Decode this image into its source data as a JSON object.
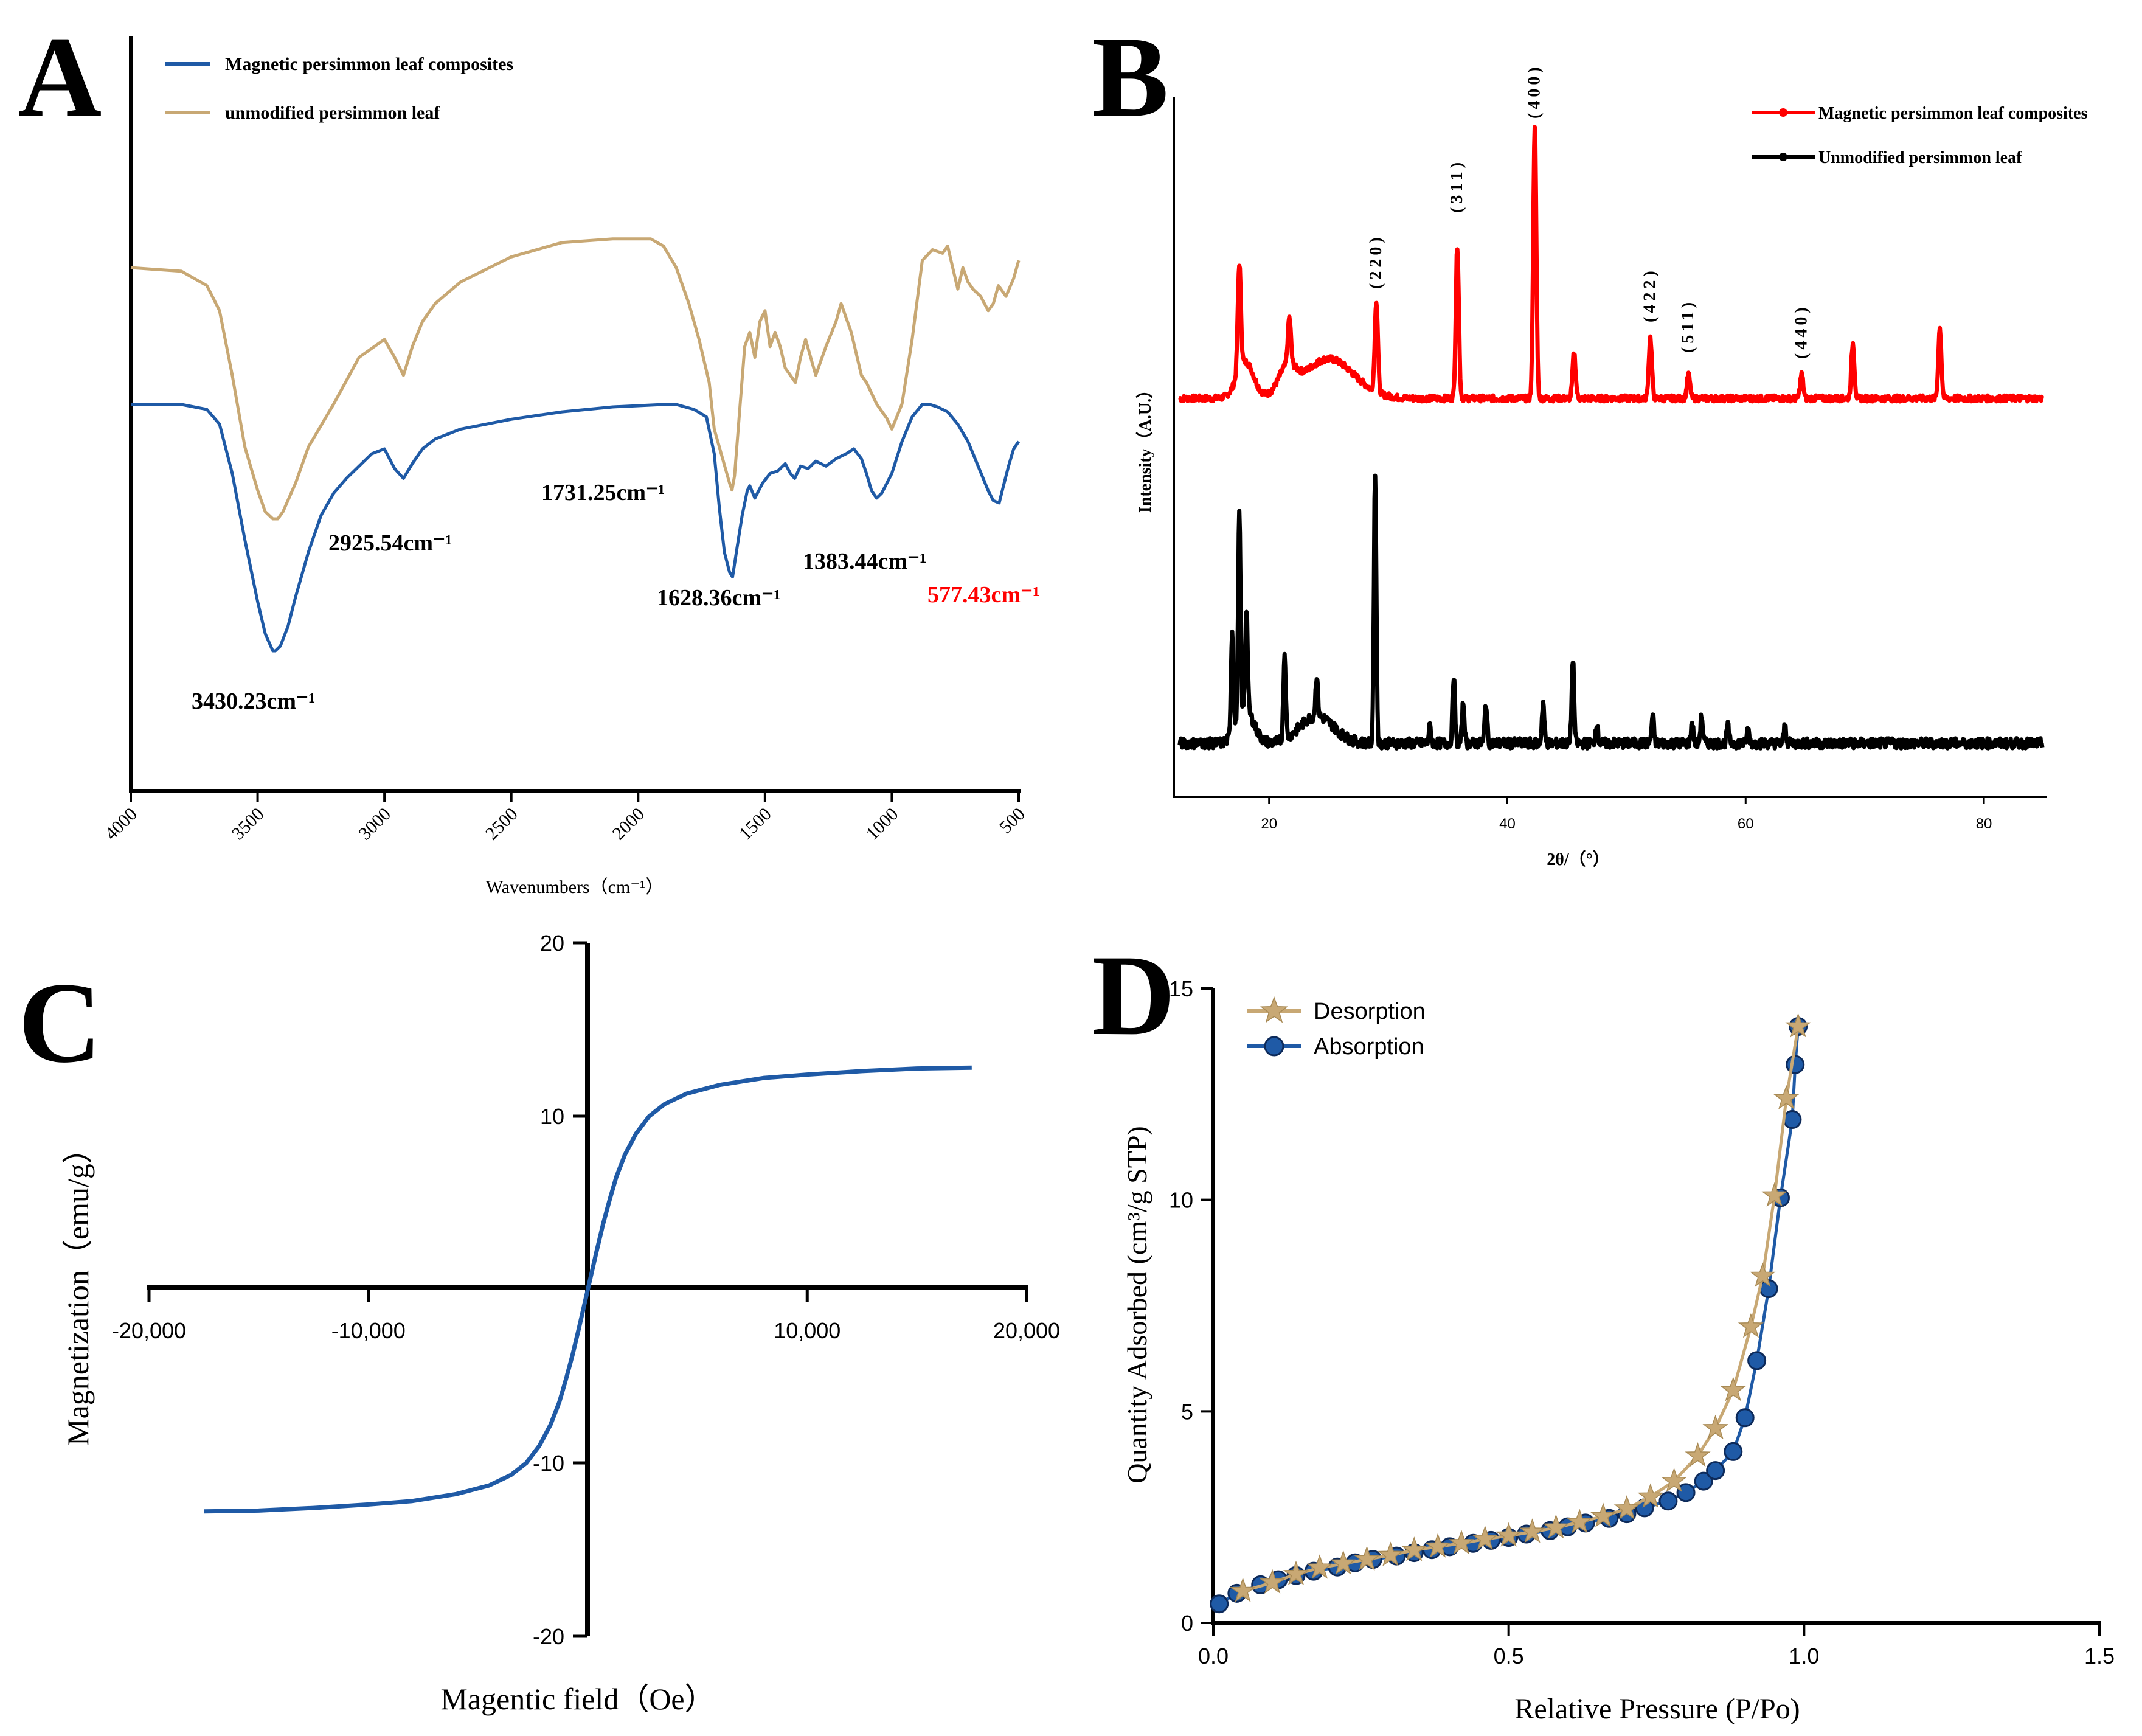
{
  "colors": {
    "blue": "#1f5aa6",
    "tan": "#c8a874",
    "red": "#ff0000",
    "black": "#000000",
    "navy_marker": "#1d3f7a"
  },
  "chart_data": [
    {
      "id": "A",
      "panel_label": "A",
      "type": "line",
      "title": "",
      "xlabel": "Wavenumbers（cm⁻¹）",
      "ylabel": "",
      "xlim": [
        4000,
        500
      ],
      "x_ticks": [
        "4000",
        "3500",
        "3000",
        "2500",
        "2000",
        "1500",
        "1000",
        "500"
      ],
      "legend": [
        {
          "name": "Magnetic persimmon leaf composites",
          "color": "#1f5aa6"
        },
        {
          "name": "unmodified persimmon leaf",
          "color": "#c8a874"
        }
      ],
      "series": [
        {
          "name": "Magnetic persimmon leaf composites",
          "color": "#1f5aa6",
          "x": [
            4000,
            3800,
            3700,
            3650,
            3600,
            3550,
            3500,
            3470,
            3440,
            3430,
            3410,
            3380,
            3350,
            3300,
            3250,
            3200,
            3150,
            3100,
            3050,
            3000,
            2960,
            2925,
            2890,
            2850,
            2800,
            2700,
            2500,
            2300,
            2100,
            1900,
            1850,
            1780,
            1731,
            1700,
            1680,
            1660,
            1640,
            1628,
            1610,
            1590,
            1570,
            1560,
            1540,
            1510,
            1480,
            1450,
            1420,
            1400,
            1383,
            1360,
            1330,
            1300,
            1260,
            1220,
            1180,
            1150,
            1120,
            1100,
            1080,
            1060,
            1040,
            1020,
            1000,
            960,
            920,
            880,
            850,
            820,
            780,
            740,
            700,
            660,
            620,
            600,
            577,
            560,
            540,
            520,
            500
          ],
          "y": [
            0.0,
            0.0,
            -0.02,
            -0.08,
            -0.28,
            -0.55,
            -0.8,
            -0.93,
            -1.0,
            -1.0,
            -0.98,
            -0.9,
            -0.78,
            -0.6,
            -0.45,
            -0.36,
            -0.3,
            -0.25,
            -0.2,
            -0.18,
            -0.26,
            -0.3,
            -0.24,
            -0.18,
            -0.14,
            -0.1,
            -0.06,
            -0.03,
            -0.01,
            0.0,
            0.0,
            -0.02,
            -0.05,
            -0.2,
            -0.42,
            -0.6,
            -0.68,
            -0.7,
            -0.58,
            -0.45,
            -0.35,
            -0.33,
            -0.38,
            -0.32,
            -0.28,
            -0.27,
            -0.24,
            -0.28,
            -0.3,
            -0.25,
            -0.26,
            -0.23,
            -0.25,
            -0.22,
            -0.2,
            -0.18,
            -0.22,
            -0.28,
            -0.35,
            -0.38,
            -0.36,
            -0.32,
            -0.28,
            -0.15,
            -0.05,
            0.0,
            0.0,
            -0.01,
            -0.03,
            -0.08,
            -0.15,
            -0.25,
            -0.35,
            -0.39,
            -0.4,
            -0.33,
            -0.25,
            -0.18,
            -0.15
          ]
        },
        {
          "name": "unmodified persimmon leaf",
          "color": "#c8a874",
          "x": [
            4000,
            3800,
            3700,
            3650,
            3600,
            3550,
            3500,
            3470,
            3440,
            3420,
            3400,
            3350,
            3300,
            3200,
            3100,
            3000,
            2960,
            2925,
            2890,
            2850,
            2800,
            2700,
            2500,
            2300,
            2100,
            1950,
            1900,
            1850,
            1800,
            1760,
            1720,
            1700,
            1680,
            1660,
            1640,
            1630,
            1620,
            1600,
            1580,
            1560,
            1540,
            1520,
            1500,
            1480,
            1460,
            1440,
            1420,
            1400,
            1380,
            1360,
            1340,
            1300,
            1260,
            1220,
            1200,
            1180,
            1160,
            1140,
            1120,
            1100,
            1080,
            1060,
            1040,
            1020,
            1000,
            960,
            920,
            880,
            840,
            800,
            780,
            760,
            740,
            720,
            700,
            680,
            650,
            620,
            600,
            580,
            550,
            520,
            500
          ],
          "y": [
            0.0,
            -0.01,
            -0.05,
            -0.12,
            -0.3,
            -0.5,
            -0.62,
            -0.68,
            -0.7,
            -0.7,
            -0.68,
            -0.6,
            -0.5,
            -0.38,
            -0.25,
            -0.2,
            -0.25,
            -0.3,
            -0.22,
            -0.15,
            -0.1,
            -0.04,
            0.03,
            0.07,
            0.08,
            0.08,
            0.06,
            0.0,
            -0.1,
            -0.2,
            -0.32,
            -0.45,
            -0.5,
            -0.55,
            -0.6,
            -0.62,
            -0.58,
            -0.4,
            -0.22,
            -0.18,
            -0.25,
            -0.15,
            -0.12,
            -0.22,
            -0.18,
            -0.22,
            -0.28,
            -0.3,
            -0.32,
            -0.25,
            -0.2,
            -0.3,
            -0.22,
            -0.15,
            -0.1,
            -0.14,
            -0.18,
            -0.24,
            -0.3,
            -0.32,
            -0.35,
            -0.38,
            -0.4,
            -0.42,
            -0.45,
            -0.38,
            -0.2,
            0.02,
            0.05,
            0.04,
            0.06,
            0.0,
            -0.06,
            0.0,
            -0.04,
            -0.06,
            -0.08,
            -0.12,
            -0.1,
            -0.05,
            -0.08,
            -0.03,
            0.02
          ]
        }
      ],
      "annotations": [
        {
          "text": "3430.23cm⁻¹",
          "color": "#000000"
        },
        {
          "text": "2925.54cm⁻¹",
          "color": "#000000"
        },
        {
          "text": "1731.25cm⁻¹",
          "color": "#000000"
        },
        {
          "text": "1628.36cm⁻¹",
          "color": "#000000"
        },
        {
          "text": "1383.44cm⁻¹",
          "color": "#000000"
        },
        {
          "text": "577.43cm⁻¹",
          "color": "#ff0000"
        }
      ]
    },
    {
      "id": "B",
      "panel_label": "B",
      "type": "line",
      "title": "",
      "xlabel": "2θ/（°）",
      "ylabel": "Intensity（A.U.）",
      "xlim": [
        12,
        85
      ],
      "x_ticks": [
        20,
        40,
        60,
        80
      ],
      "legend": [
        {
          "name": "Magnetic persimmon leaf composites",
          "color": "#ff0000"
        },
        {
          "name": "Unmodified persimmon leaf",
          "color": "#000000"
        }
      ],
      "series": [
        {
          "name": "Magnetic persimmon leaf composites",
          "color": "#ff0000",
          "baseline": 0.0,
          "noise": 0.02,
          "humps": [
            [
              18,
              0.12,
              1.0
            ],
            [
              21.5,
              0.08,
              1.0
            ],
            [
              25,
              0.13,
              3.0
            ]
          ],
          "peaks": [
            [
              17.5,
              0.35
            ],
            [
              21.7,
              0.15
            ],
            [
              29.0,
              0.3
            ],
            [
              35.8,
              0.5
            ],
            [
              42.3,
              0.9
            ],
            [
              45.6,
              0.15
            ],
            [
              52.0,
              0.2
            ],
            [
              55.2,
              0.08
            ],
            [
              64.7,
              0.08
            ],
            [
              69.0,
              0.18
            ],
            [
              76.3,
              0.23
            ]
          ]
        },
        {
          "name": "Unmodified persimmon leaf",
          "color": "#000000",
          "baseline": 0.0,
          "noise": 0.03,
          "humps": [
            [
              18,
              0.1,
              1.0
            ],
            [
              24,
              0.08,
              2.0
            ]
          ],
          "peaks": [
            [
              16.9,
              0.3
            ],
            [
              17.5,
              0.6
            ],
            [
              18.1,
              0.3
            ],
            [
              21.3,
              0.25
            ],
            [
              24.0,
              0.12
            ],
            [
              28.9,
              0.8
            ],
            [
              33.5,
              0.05
            ],
            [
              35.5,
              0.2
            ],
            [
              36.3,
              0.12
            ],
            [
              38.2,
              0.12
            ],
            [
              43.0,
              0.12
            ],
            [
              45.5,
              0.25
            ],
            [
              47.5,
              0.06
            ],
            [
              52.2,
              0.08
            ],
            [
              55.5,
              0.06
            ],
            [
              56.3,
              0.08
            ],
            [
              58.5,
              0.05
            ],
            [
              60.2,
              0.04
            ],
            [
              63.3,
              0.05
            ]
          ]
        }
      ],
      "peak_labels": [
        {
          "text": "(220)",
          "x": 29.0
        },
        {
          "text": "(311)",
          "x": 35.8
        },
        {
          "text": "(400)",
          "x": 42.3
        },
        {
          "text": "(422)",
          "x": 52.0
        },
        {
          "text": "(511)",
          "x": 55.2
        },
        {
          "text": "(440)",
          "x": 64.7
        }
      ]
    },
    {
      "id": "C",
      "panel_label": "C",
      "type": "line",
      "title": "",
      "xlabel": "Magentic field（Oe）",
      "ylabel": "Magnetization（emu/g）",
      "xlim": [
        -20000,
        20000
      ],
      "ylim": [
        -20,
        20
      ],
      "x_ticks": [
        "-20,000",
        "-10,000",
        "10,000",
        "20,000"
      ],
      "y_ticks": [
        "20",
        "10",
        "-10",
        "-20"
      ],
      "series": [
        {
          "name": "Magnetization",
          "color": "#1f5aa6",
          "x": [
            -17500,
            -15000,
            -12500,
            -10000,
            -8000,
            -6000,
            -4500,
            -3500,
            -2800,
            -2200,
            -1700,
            -1300,
            -1000,
            -700,
            -400,
            -200,
            0,
            200,
            400,
            700,
            1000,
            1300,
            1700,
            2200,
            2800,
            3500,
            4500,
            6000,
            8000,
            10000,
            12500,
            15000,
            17500
          ],
          "y": [
            -12.8,
            -12.75,
            -12.6,
            -12.4,
            -12.2,
            -11.8,
            -11.3,
            -10.7,
            -10.0,
            -9.0,
            -7.8,
            -6.5,
            -5.2,
            -3.8,
            -2.2,
            -1.1,
            0.0,
            1.1,
            2.2,
            3.8,
            5.2,
            6.5,
            7.8,
            9.0,
            10.0,
            10.7,
            11.3,
            11.8,
            12.2,
            12.4,
            12.6,
            12.75,
            12.8
          ]
        }
      ]
    },
    {
      "id": "D",
      "panel_label": "D",
      "type": "line",
      "title": "",
      "xlabel": "Relative Pressure (P/Po)",
      "ylabel": "Quantity Adsorbed (cm³/g STP)",
      "xlim": [
        0,
        1.5
      ],
      "ylim": [
        0,
        15
      ],
      "x_ticks": [
        "0.0",
        "0.5",
        "1.0",
        "1.5"
      ],
      "y_ticks": [
        "0",
        "5",
        "10",
        "15"
      ],
      "legend": [
        {
          "name": "Desorption",
          "color": "#c8a874",
          "marker": "star"
        },
        {
          "name": "Absorption",
          "color": "#1f5aa6",
          "marker": "circle"
        }
      ],
      "series": [
        {
          "name": "Desorption",
          "color": "#c8a874",
          "marker": "star",
          "x": [
            0.05,
            0.1,
            0.14,
            0.18,
            0.22,
            0.26,
            0.3,
            0.34,
            0.38,
            0.42,
            0.46,
            0.5,
            0.54,
            0.58,
            0.62,
            0.66,
            0.7,
            0.74,
            0.78,
            0.82,
            0.85,
            0.88,
            0.91,
            0.93,
            0.95,
            0.97,
            0.99
          ],
          "y": [
            0.75,
            0.95,
            1.15,
            1.3,
            1.4,
            1.5,
            1.6,
            1.72,
            1.8,
            1.88,
            1.98,
            2.06,
            2.15,
            2.25,
            2.38,
            2.52,
            2.7,
            2.98,
            3.35,
            3.95,
            4.6,
            5.5,
            7.0,
            8.2,
            10.1,
            12.4,
            14.1
          ]
        },
        {
          "name": "Absorption",
          "color": "#1f5aa6",
          "marker": "circle",
          "x": [
            0.01,
            0.04,
            0.08,
            0.11,
            0.14,
            0.17,
            0.21,
            0.24,
            0.27,
            0.31,
            0.34,
            0.37,
            0.4,
            0.44,
            0.47,
            0.5,
            0.53,
            0.57,
            0.6,
            0.63,
            0.67,
            0.7,
            0.73,
            0.77,
            0.8,
            0.83,
            0.85,
            0.88,
            0.9,
            0.92,
            0.94,
            0.96,
            0.98,
            0.985,
            0.99
          ],
          "y": [
            0.45,
            0.7,
            0.9,
            1.02,
            1.12,
            1.22,
            1.32,
            1.42,
            1.5,
            1.58,
            1.66,
            1.73,
            1.8,
            1.88,
            1.95,
            2.02,
            2.1,
            2.18,
            2.27,
            2.36,
            2.47,
            2.58,
            2.72,
            2.88,
            3.08,
            3.35,
            3.6,
            4.05,
            4.85,
            6.2,
            7.9,
            10.05,
            11.9,
            13.2,
            14.1
          ]
        }
      ]
    }
  ]
}
